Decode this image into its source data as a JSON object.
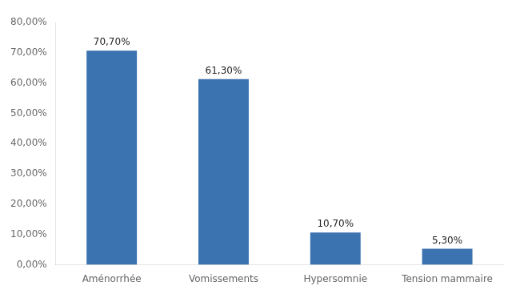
{
  "chart_data": {
    "type": "bar",
    "categories": [
      "Aménorrhée",
      "Vomissements",
      "Hypersomnie",
      "Tension mammaire"
    ],
    "values": [
      0.707,
      0.613,
      0.107,
      0.053
    ],
    "value_labels": [
      "70,70%",
      "61,30%",
      "10,70%",
      "5,30%"
    ],
    "color": "#3B72B0",
    "ylim": [
      0,
      0.8
    ],
    "yticks": [
      {
        "value": 0.0,
        "label": "0,00%"
      },
      {
        "value": 0.1,
        "label": "10,00%"
      },
      {
        "value": 0.2,
        "label": "20,00%"
      },
      {
        "value": 0.3,
        "label": "30,00%"
      },
      {
        "value": 0.4,
        "label": "40,00%"
      },
      {
        "value": 0.5,
        "label": "50,00%"
      },
      {
        "value": 0.6,
        "label": "60,00%"
      },
      {
        "value": 0.7,
        "label": "70,00%"
      },
      {
        "value": 0.8,
        "label": "80,00%"
      }
    ],
    "grid": false,
    "data_labels": true
  }
}
